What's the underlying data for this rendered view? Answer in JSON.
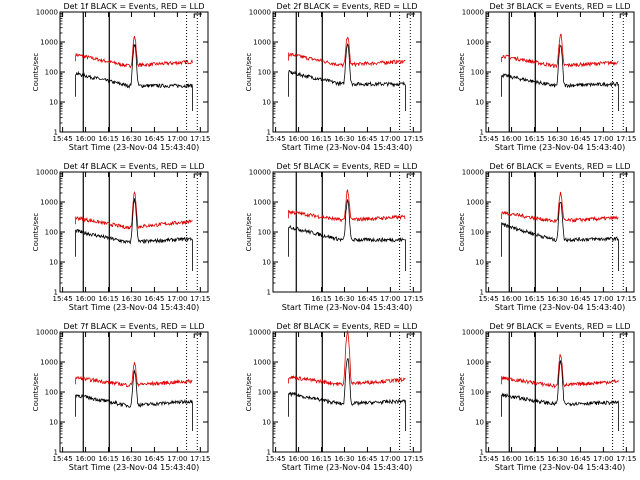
{
  "figure": {
    "xlabel": "Start Time (23-Nov-04 15:43:40)",
    "ylabel": "Counts/sec"
  },
  "colors": {
    "events": "#000000",
    "lld": "#dd0000",
    "background": "#ffffff"
  },
  "chart_data": [
    {
      "type": "line",
      "title": "Det 1f BLACK = Events, RED = LLD",
      "xlabel": "Start Time (23-Nov-04 15:43:40)",
      "ylabel": "Counts/sec",
      "x_tick_labels": [
        "15:45",
        "16:00",
        "16:15",
        "16:30",
        "16:45",
        "17:00",
        "17:15"
      ],
      "y_tick_labels": [
        "1",
        "10",
        "100",
        "1000",
        "10000"
      ],
      "yscale": "log",
      "ylim": [
        1,
        10000
      ],
      "xlim_minutes_after_1545": [
        -1.7,
        95
      ],
      "series": [
        {
          "name": "LLD",
          "color": "#dd0000",
          "base_start": 380,
          "base_end": 220,
          "base_min": 160,
          "peak": 1500
        },
        {
          "name": "Events",
          "color": "#000000",
          "base_start": 90,
          "base_end": 35,
          "base_min": 35,
          "peak": 850
        }
      ]
    },
    {
      "type": "line",
      "title": "Det 2f BLACK = Events, RED = LLD",
      "xlabel": "Start Time (23-Nov-04 15:43:40)",
      "ylabel": "Counts/sec",
      "x_tick_labels": [
        "15:45",
        "16:00",
        "16:15",
        "16:30",
        "16:45",
        "17:00",
        "17:15"
      ],
      "y_tick_labels": [
        "1",
        "10",
        "100",
        "1000",
        "10000"
      ],
      "yscale": "log",
      "ylim": [
        1,
        10000
      ],
      "xlim_minutes_after_1545": [
        -1.7,
        95
      ],
      "series": [
        {
          "name": "LLD",
          "color": "#dd0000",
          "base_start": 400,
          "base_end": 230,
          "base_min": 170,
          "peak": 1600
        },
        {
          "name": "Events",
          "color": "#000000",
          "base_start": 100,
          "base_end": 40,
          "base_min": 40,
          "peak": 900
        }
      ]
    },
    {
      "type": "line",
      "title": "Det 3f BLACK = Events, RED = LLD",
      "xlabel": "Start Time (23-Nov-04 15:43:40)",
      "ylabel": "Counts/sec",
      "x_tick_labels": [
        "15:45",
        "16:00",
        "16:15",
        "16:30",
        "16:45",
        "17:00",
        "17:15"
      ],
      "y_tick_labels": [
        "1",
        "10",
        "100",
        "1000",
        "10000"
      ],
      "yscale": "log",
      "ylim": [
        1,
        10000
      ],
      "xlim_minutes_after_1545": [
        -1.7,
        95
      ],
      "series": [
        {
          "name": "LLD",
          "color": "#dd0000",
          "base_start": 350,
          "base_end": 210,
          "base_min": 160,
          "peak": 1800
        },
        {
          "name": "Events",
          "color": "#000000",
          "base_start": 80,
          "base_end": 40,
          "base_min": 35,
          "peak": 800
        }
      ]
    },
    {
      "type": "line",
      "title": "Det 4f BLACK = Events, RED = LLD",
      "xlabel": "Start Time (23-Nov-04 15:43:40)",
      "ylabel": "Counts/sec",
      "x_tick_labels": [
        "15:45",
        "16:00",
        "16:15",
        "16:30",
        "16:45",
        "17:00",
        "17:15"
      ],
      "y_tick_labels": [
        "1",
        "10",
        "100",
        "1000",
        "10000"
      ],
      "yscale": "log",
      "ylim": [
        1,
        10000
      ],
      "xlim_minutes_after_1545": [
        -1.7,
        95
      ],
      "series": [
        {
          "name": "LLD",
          "color": "#dd0000",
          "base_start": 300,
          "base_end": 230,
          "base_min": 140,
          "peak": 2000
        },
        {
          "name": "Events",
          "color": "#000000",
          "base_start": 110,
          "base_end": 60,
          "base_min": 45,
          "peak": 1200
        }
      ]
    },
    {
      "type": "line",
      "title": "Det 5f BLACK = Events, RED = LLD",
      "xlabel": "Start Time (23-Nov-04 15:43:40)",
      "ylabel": "Counts/sec",
      "x_tick_labels": [
        "16:15",
        "16:30",
        "16:45",
        "17:00",
        "17:15"
      ],
      "y_tick_labels": [
        "1",
        "10",
        "100",
        "1000",
        "10000"
      ],
      "yscale": "log",
      "ylim": [
        1,
        10000
      ],
      "xlim_minutes_after_1545": [
        -1.7,
        95
      ],
      "series": [
        {
          "name": "LLD",
          "color": "#dd0000",
          "base_start": 480,
          "base_end": 320,
          "base_min": 250,
          "peak": 2400
        },
        {
          "name": "Events",
          "color": "#000000",
          "base_start": 150,
          "base_end": 55,
          "base_min": 55,
          "peak": 1100
        }
      ]
    },
    {
      "type": "line",
      "title": "Det 6f BLACK = Events, RED = LLD",
      "xlabel": "Start Time (23-Nov-04 15:43:40)",
      "ylabel": "Counts/sec",
      "x_tick_labels": [
        "15:45",
        "16:00",
        "16:15",
        "16:30",
        "16:45",
        "17:00",
        "17:15"
      ],
      "y_tick_labels": [
        "1",
        "10",
        "100",
        "1000",
        "10000"
      ],
      "yscale": "log",
      "ylim": [
        1,
        10000
      ],
      "xlim_minutes_after_1545": [
        -1.7,
        95
      ],
      "series": [
        {
          "name": "LLD",
          "color": "#dd0000",
          "base_start": 450,
          "base_end": 300,
          "base_min": 230,
          "peak": 2000
        },
        {
          "name": "Events",
          "color": "#000000",
          "base_start": 180,
          "base_end": 60,
          "base_min": 55,
          "peak": 1100
        }
      ]
    },
    {
      "type": "line",
      "title": "Det 7f BLACK = Events, RED = LLD",
      "xlabel": "Start Time (23-Nov-04 15:43:40)",
      "ylabel": "Counts/sec",
      "x_tick_labels": [
        "15:45",
        "16:00",
        "16:15",
        "16:30",
        "16:45",
        "17:00",
        "17:15"
      ],
      "y_tick_labels": [
        "1",
        "10",
        "100",
        "1000",
        "10000"
      ],
      "yscale": "log",
      "ylim": [
        1,
        10000
      ],
      "xlim_minutes_after_1545": [
        -1.7,
        95
      ],
      "series": [
        {
          "name": "LLD",
          "color": "#dd0000",
          "base_start": 300,
          "base_end": 230,
          "base_min": 170,
          "peak": 900
        },
        {
          "name": "Events",
          "color": "#000000",
          "base_start": 80,
          "base_end": 50,
          "base_min": 35,
          "peak": 500
        }
      ]
    },
    {
      "type": "line",
      "title": "Det 8f BLACK = Events, RED = LLD",
      "xlabel": "Start Time (23-Nov-04 15:43:40)",
      "ylabel": "Counts/sec",
      "x_tick_labels": [
        "15:45",
        "16:00",
        "16:15",
        "16:30",
        "16:45",
        "17:00",
        "17:15"
      ],
      "y_tick_labels": [
        "1",
        "10",
        "100",
        "1000",
        "10000"
      ],
      "yscale": "log",
      "ylim": [
        1,
        10000
      ],
      "xlim_minutes_after_1545": [
        -1.7,
        95
      ],
      "series": [
        {
          "name": "LLD",
          "color": "#dd0000",
          "base_start": 320,
          "base_end": 260,
          "base_min": 180,
          "peak": 10000
        },
        {
          "name": "Events",
          "color": "#000000",
          "base_start": 90,
          "base_end": 50,
          "base_min": 40,
          "peak": 1400
        }
      ]
    },
    {
      "type": "line",
      "title": "Det 9f BLACK = Events, RED = LLD",
      "xlabel": "Start Time (23-Nov-04 15:43:40)",
      "ylabel": "Counts/sec",
      "x_tick_labels": [
        "15:45",
        "16:00",
        "16:15",
        "16:30",
        "16:45",
        "17:00",
        "17:15"
      ],
      "y_tick_labels": [
        "1",
        "10",
        "100",
        "1000",
        "10000"
      ],
      "yscale": "log",
      "ylim": [
        1,
        10000
      ],
      "xlim_minutes_after_1545": [
        -1.7,
        95
      ],
      "series": [
        {
          "name": "LLD",
          "color": "#dd0000",
          "base_start": 300,
          "base_end": 230,
          "base_min": 160,
          "peak": 1800
        },
        {
          "name": "Events",
          "color": "#000000",
          "base_start": 80,
          "base_end": 45,
          "base_min": 40,
          "peak": 1000
        }
      ]
    }
  ]
}
